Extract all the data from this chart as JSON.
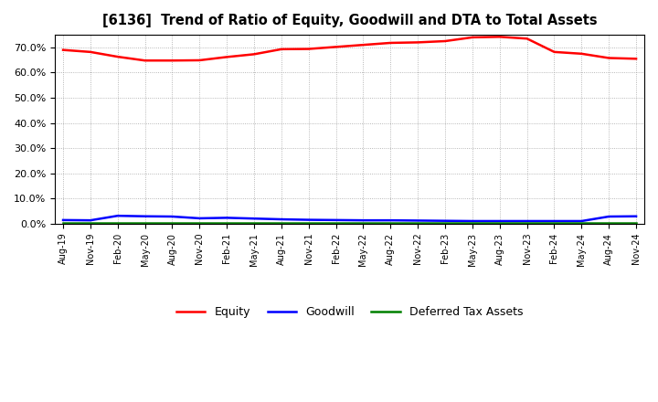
{
  "title": "[6136]  Trend of Ratio of Equity, Goodwill and DTA to Total Assets",
  "x_labels": [
    "Aug-19",
    "Nov-19",
    "Feb-20",
    "May-20",
    "Aug-20",
    "Nov-20",
    "Feb-21",
    "May-21",
    "Aug-21",
    "Nov-21",
    "Feb-22",
    "May-22",
    "Aug-22",
    "Nov-22",
    "Feb-23",
    "May-23",
    "Aug-23",
    "Nov-23",
    "Feb-24",
    "May-24",
    "Aug-24",
    "Nov-24"
  ],
  "equity": [
    69.0,
    68.2,
    66.3,
    64.8,
    64.8,
    64.9,
    66.2,
    67.3,
    69.3,
    69.4,
    70.2,
    71.0,
    71.8,
    72.0,
    72.5,
    74.0,
    74.2,
    73.5,
    68.2,
    67.5,
    65.8,
    65.5
  ],
  "goodwill": [
    1.5,
    1.4,
    3.2,
    3.0,
    2.9,
    2.2,
    2.4,
    2.1,
    1.8,
    1.6,
    1.5,
    1.4,
    1.4,
    1.3,
    1.2,
    1.1,
    1.1,
    1.1,
    1.1,
    1.1,
    2.9,
    3.0
  ],
  "dta": [
    0.2,
    0.2,
    0.2,
    0.2,
    0.2,
    0.2,
    0.2,
    0.2,
    0.2,
    0.2,
    0.2,
    0.2,
    0.2,
    0.2,
    0.2,
    0.2,
    0.2,
    0.2,
    0.2,
    0.2,
    0.2,
    0.2
  ],
  "equity_color": "#FF0000",
  "goodwill_color": "#0000FF",
  "dta_color": "#008000",
  "ylim": [
    0,
    75
  ],
  "yticks": [
    0,
    10,
    20,
    30,
    40,
    50,
    60,
    70
  ],
  "background_color": "#FFFFFF",
  "plot_bg_color": "#FFFFFF",
  "grid_color": "#999999",
  "legend_labels": [
    "Equity",
    "Goodwill",
    "Deferred Tax Assets"
  ]
}
